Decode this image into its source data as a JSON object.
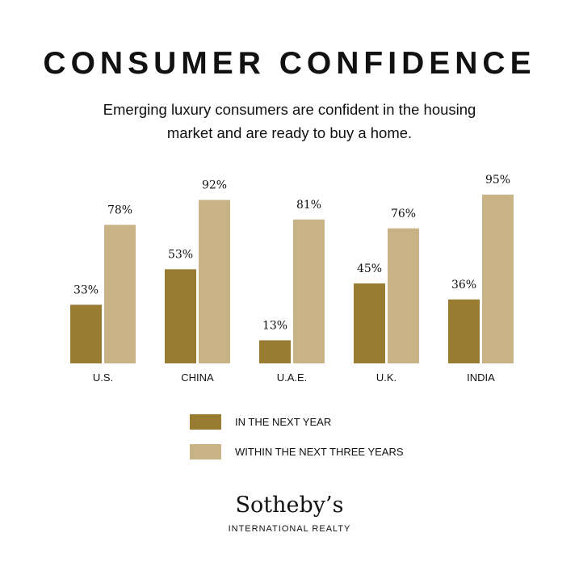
{
  "header": {
    "title": "CONSUMER CONFIDENCE",
    "subtitle": "Emerging luxury consumers are confident in the housing market and are ready to buy a home."
  },
  "colors": {
    "next_year": "#987c32",
    "three_years": "#c7b385",
    "text": "#111111",
    "background": "#ffffff"
  },
  "chart_data": {
    "type": "bar",
    "categories": [
      "U.S.",
      "CHINA",
      "U.A.E.",
      "U.K.",
      "INDIA"
    ],
    "series": [
      {
        "name": "IN THE NEXT YEAR",
        "values": [
          33,
          53,
          13,
          45,
          36
        ]
      },
      {
        "name": "WITHIN THE NEXT THREE YEARS",
        "values": [
          78,
          92,
          81,
          76,
          95
        ]
      }
    ],
    "value_suffix": "%",
    "ylim": [
      0,
      100
    ],
    "grid": false,
    "legend_position": "bottom"
  },
  "brand": {
    "name": "Sotheby’s",
    "tagline": "INTERNATIONAL REALTY"
  }
}
